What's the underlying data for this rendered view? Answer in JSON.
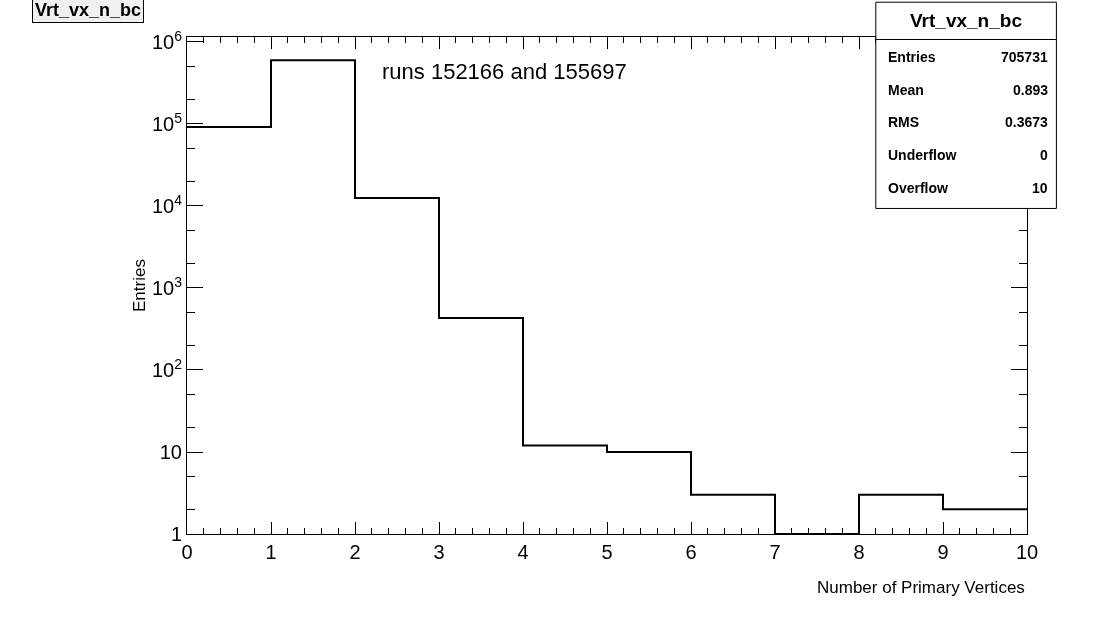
{
  "chart_data": {
    "type": "histogram",
    "title": "Vrt_vx_n_bc",
    "xlabel": "Number of Primary Vertices",
    "ylabel": "Entries",
    "bins": [
      0,
      1,
      2,
      3,
      4,
      5,
      6,
      7,
      8,
      9,
      10
    ],
    "values": [
      92000,
      600000,
      12500,
      430,
      12,
      10,
      3,
      1,
      3,
      2
    ],
    "color": "#000000",
    "xlim": [
      0,
      10
    ],
    "xticks": [
      0,
      1,
      2,
      3,
      4,
      5,
      6,
      7,
      8,
      9,
      10
    ],
    "ylim": [
      1,
      1150000
    ],
    "log": "y",
    "yticks": [
      1,
      10,
      {
        "value": 100,
        "label": "10$^{2}$"
      },
      {
        "value": 1000,
        "label": "10$^{3}$"
      },
      {
        "value": 10000,
        "label": "10$^{4}$"
      },
      {
        "value": 100000,
        "label": "10$^{5}$"
      },
      {
        "value": 1000000,
        "label": "10$^{6}$"
      }
    ],
    "annotations": [
      "runs 152166 and 155697",
      "Vrt_vx_n_bc",
      "Entries",
      "705731",
      "Mean",
      "0.893",
      "RMS",
      "0.3673",
      "Underflow",
      "0",
      "Overflow",
      "10"
    ]
  }
}
